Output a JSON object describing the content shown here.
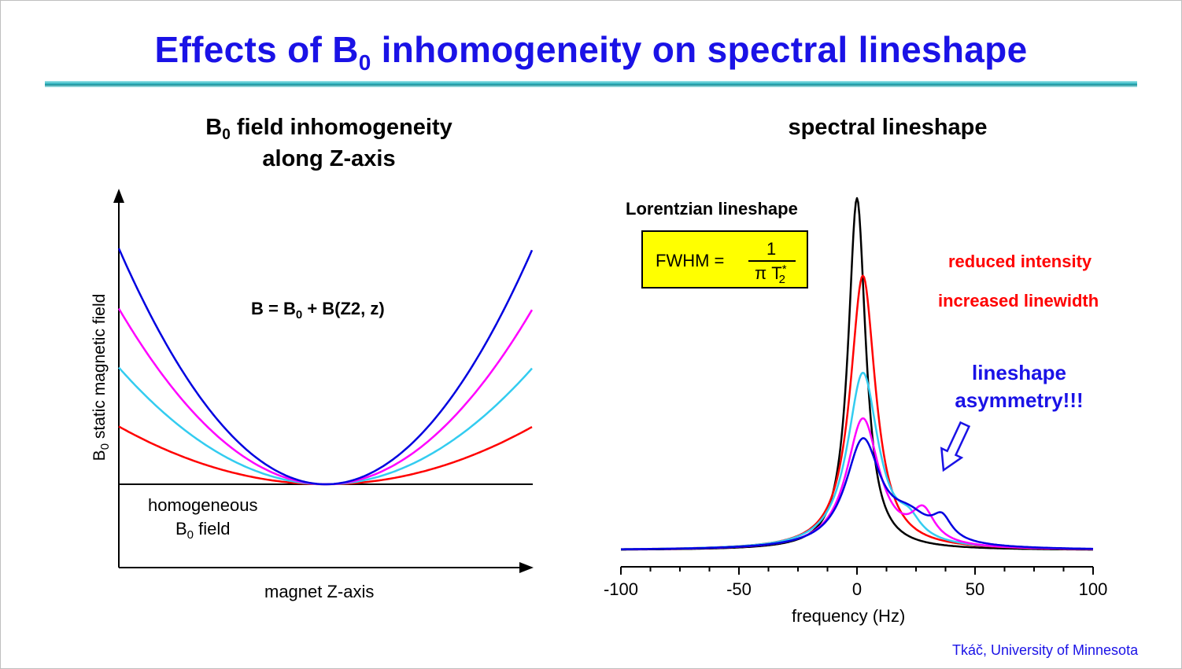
{
  "slide": {
    "title_main": "Effects of B",
    "title_sub": "0",
    "title_rest": " inhomogeneity on spectral lineshape",
    "credit": "Tkáč, University of Minnesota"
  },
  "left_panel": {
    "heading_main": "B",
    "heading_sub": "0",
    "heading_line1_rest": " field inhomogeneity",
    "heading_line2": "along Z-axis",
    "y_axis_label_main": "B",
    "y_axis_label_sub": "0",
    "y_axis_label_rest": " static magnetic field",
    "x_axis_label": "magnet Z-axis",
    "equation_main": "B = B",
    "equation_sub": "0",
    "equation_rest": " + B(Z2, z)",
    "baseline_label_line1": "homogeneous",
    "baseline_label_line2_main": "B",
    "baseline_label_line2_sub": "0",
    "baseline_label_line2_rest": " field",
    "curves": [
      {
        "name": "red",
        "color": "#ff0000",
        "edge_level": 0.245
      },
      {
        "name": "cyan",
        "color": "#33ccf0",
        "edge_level": 0.495
      },
      {
        "name": "magenta",
        "color": "#ff00ff",
        "edge_level": 0.745
      },
      {
        "name": "blue",
        "color": "#0000e0",
        "edge_level": 1.0
      }
    ]
  },
  "right_panel": {
    "heading": "spectral lineshape",
    "lorentzian_label": "Lorentzian lineshape",
    "fwhm_label": "FWHM =",
    "fwhm_numerator": "1",
    "fwhm_den_pi": "π T",
    "fwhm_den_star": "*",
    "fwhm_den_sub": "2",
    "annotation_reduced": "reduced intensity",
    "annotation_increased": "increased linewidth",
    "annotation_asym_line1": "lineshape",
    "annotation_asym_line2": "asymmetry!!!",
    "colors": {
      "red": "#ff0000",
      "blue": "#1a12e6"
    }
  },
  "chart_data": {
    "type": "line",
    "title": "spectral lineshape",
    "xlabel": "frequency (Hz)",
    "ylabel": "",
    "xlim": [
      -100,
      100
    ],
    "ylim": [
      0,
      1
    ],
    "x_ticks": [
      -100,
      -50,
      0,
      50,
      100
    ],
    "x_tick_labels": [
      "-100",
      "-50",
      "0",
      "50",
      "100"
    ],
    "series": [
      {
        "name": "homogeneous",
        "color": "#000000",
        "components": [
          {
            "center": 0,
            "hwhm": 4.5,
            "amp": 1.0
          }
        ]
      },
      {
        "name": "red",
        "color": "#ff0000",
        "components": [
          {
            "center": 2.5,
            "hwhm": 6.5,
            "amp": 0.78
          }
        ]
      },
      {
        "name": "cyan",
        "color": "#33ccf0",
        "components": [
          {
            "center": 2.5,
            "hwhm": 8,
            "amp": 0.5
          },
          {
            "center": 22,
            "hwhm": 6,
            "amp": 0.05
          }
        ]
      },
      {
        "name": "magenta",
        "color": "#ff00ff",
        "components": [
          {
            "center": 2.5,
            "hwhm": 8.5,
            "amp": 0.37
          },
          {
            "center": 28,
            "hwhm": 6,
            "amp": 0.09
          }
        ]
      },
      {
        "name": "blue",
        "color": "#0000e0",
        "components": [
          {
            "center": 2.5,
            "hwhm": 9,
            "amp": 0.3
          },
          {
            "center": 36,
            "hwhm": 5,
            "amp": 0.06
          },
          {
            "center": 22,
            "hwhm": 11,
            "amp": 0.07
          }
        ]
      }
    ]
  }
}
